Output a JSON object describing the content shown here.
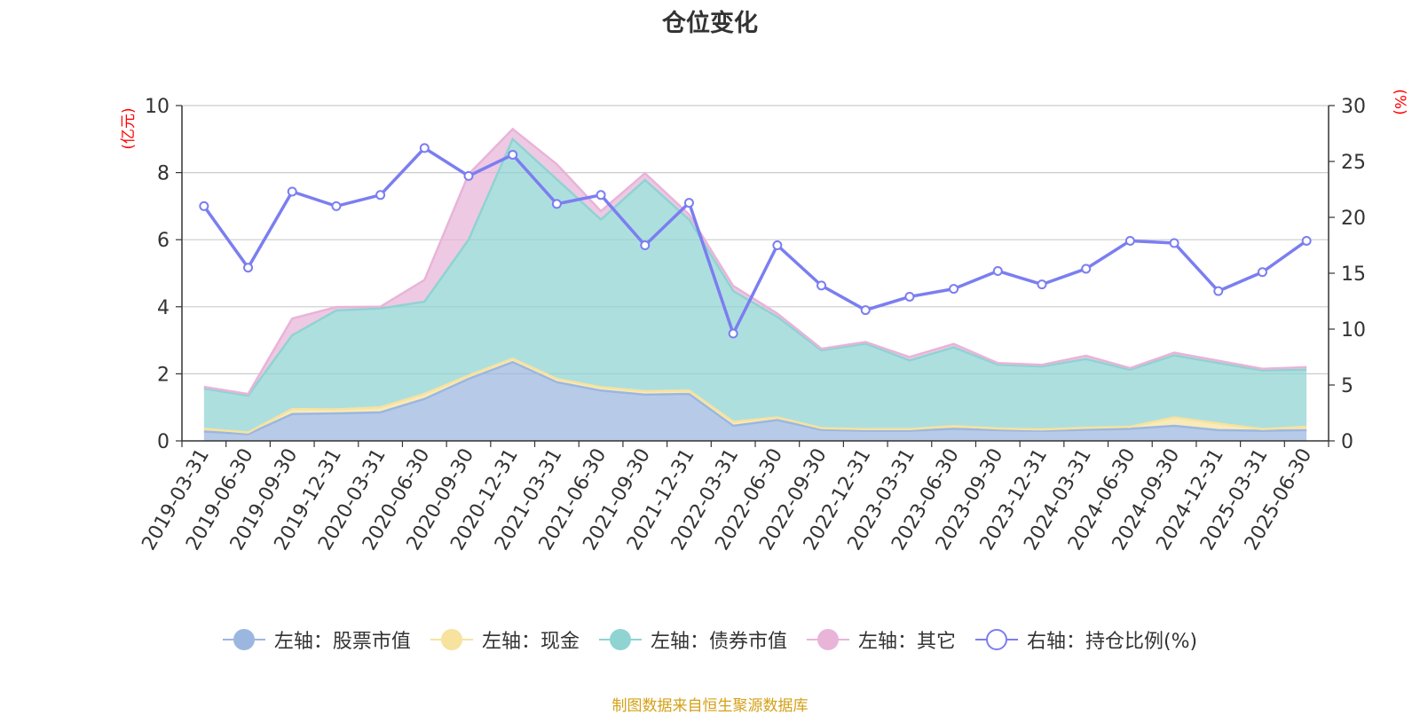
{
  "chart_data": {
    "type": "area",
    "title": "仓位变化",
    "categories": [
      "2019-03-31",
      "2019-06-30",
      "2019-09-30",
      "2019-12-31",
      "2020-03-31",
      "2020-06-30",
      "2020-09-30",
      "2020-12-31",
      "2021-03-31",
      "2021-06-30",
      "2021-09-30",
      "2021-12-31",
      "2022-03-31",
      "2022-06-30",
      "2022-09-30",
      "2022-12-31",
      "2023-03-31",
      "2023-06-30",
      "2023-09-30",
      "2023-12-31",
      "2024-03-31",
      "2024-06-30",
      "2024-09-30",
      "2024-12-31",
      "2025-03-31",
      "2025-06-30"
    ],
    "left_axis": {
      "unit": "(亿元)",
      "min": 0,
      "max": 10,
      "ticks": [
        0,
        2,
        4,
        6,
        8,
        10
      ]
    },
    "right_axis": {
      "unit": "(%)",
      "min": 0,
      "max": 30,
      "ticks": [
        0,
        5,
        10,
        15,
        20,
        25,
        30
      ]
    },
    "stacked": true,
    "series": [
      {
        "name": "左轴：股票市值",
        "axis": "left",
        "type": "area",
        "color": "#9bb7e0",
        "values": [
          0.28,
          0.2,
          0.8,
          0.82,
          0.85,
          1.25,
          1.85,
          2.35,
          1.75,
          1.5,
          1.38,
          1.4,
          0.45,
          0.62,
          0.33,
          0.3,
          0.3,
          0.36,
          0.32,
          0.3,
          0.33,
          0.36,
          0.45,
          0.32,
          0.3,
          0.32
        ]
      },
      {
        "name": "左轴：现金",
        "axis": "left",
        "type": "area",
        "color": "#f7e29e",
        "values": [
          0.08,
          0.05,
          0.15,
          0.12,
          0.15,
          0.15,
          0.1,
          0.1,
          0.1,
          0.1,
          0.1,
          0.1,
          0.12,
          0.08,
          0.05,
          0.05,
          0.05,
          0.08,
          0.05,
          0.04,
          0.06,
          0.06,
          0.25,
          0.2,
          0.05,
          0.1
        ]
      },
      {
        "name": "左轴：债券市值",
        "axis": "left",
        "type": "area",
        "color": "#8fd3d3",
        "values": [
          1.2,
          1.1,
          2.2,
          2.95,
          2.95,
          2.75,
          4.05,
          6.55,
          5.95,
          5.0,
          6.3,
          5.1,
          3.9,
          3.0,
          2.32,
          2.55,
          2.05,
          2.35,
          1.9,
          1.88,
          2.05,
          1.7,
          1.85,
          1.8,
          1.75,
          1.7
        ]
      },
      {
        "name": "左轴：其它",
        "axis": "left",
        "type": "area",
        "color": "#e8b4d8",
        "values": [
          0.05,
          0.05,
          0.5,
          0.1,
          0.05,
          0.65,
          1.95,
          0.3,
          0.45,
          0.25,
          0.2,
          0.15,
          0.15,
          0.1,
          0.05,
          0.05,
          0.1,
          0.1,
          0.05,
          0.05,
          0.1,
          0.05,
          0.08,
          0.07,
          0.05,
          0.08
        ]
      },
      {
        "name": "右轴：持仓比例(%)",
        "axis": "right",
        "type": "line",
        "color": "#7b7ef0",
        "values": [
          21.0,
          15.5,
          22.3,
          21.0,
          22.0,
          26.2,
          23.7,
          25.6,
          21.2,
          22.0,
          17.5,
          21.3,
          9.6,
          17.5,
          13.9,
          11.7,
          12.9,
          13.6,
          15.2,
          14.0,
          15.4,
          17.9,
          17.7,
          13.4,
          15.1,
          17.9
        ]
      }
    ],
    "legend_position": "bottom",
    "grid": true
  },
  "source": "制图数据来自恒生聚源数据库"
}
